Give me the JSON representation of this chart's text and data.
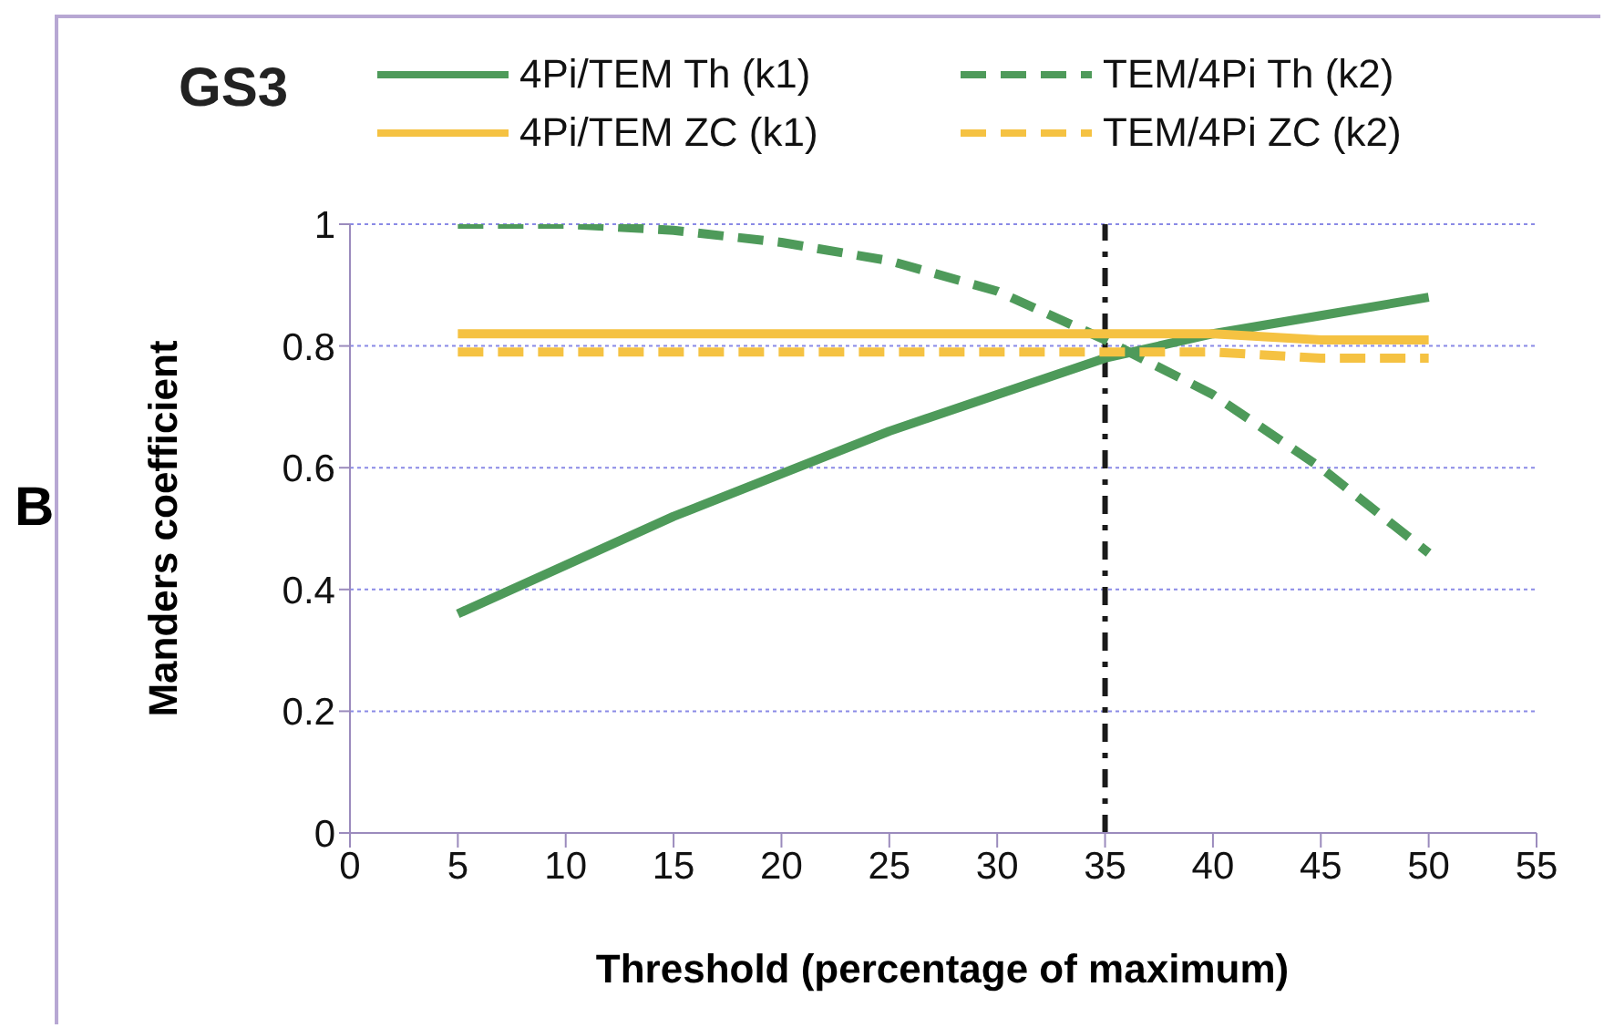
{
  "chart_data": {
    "type": "line",
    "title": "GS3",
    "xlabel": "Threshold (percentage of maximum)",
    "ylabel": "Manders coefficient",
    "annotations": [
      "B"
    ],
    "x": [
      5,
      10,
      15,
      20,
      25,
      30,
      35,
      40,
      45,
      50
    ],
    "series": [
      {
        "name": "4Pi/TEM Th (k1)",
        "color": "#4e9a5a",
        "line_style": "solid",
        "values": [
          0.36,
          0.44,
          0.52,
          0.59,
          0.66,
          0.72,
          0.78,
          0.82,
          0.85,
          0.88
        ]
      },
      {
        "name": "TEM/4Pi Th (k2)",
        "color": "#4e9a5a",
        "line_style": "dashed",
        "values": [
          1.0,
          1.0,
          0.99,
          0.97,
          0.94,
          0.89,
          0.81,
          0.72,
          0.6,
          0.46
        ]
      },
      {
        "name": "4Pi/TEM ZC (k1)",
        "color": "#f5c242",
        "line_style": "solid",
        "values": [
          0.82,
          0.82,
          0.82,
          0.82,
          0.82,
          0.82,
          0.82,
          0.82,
          0.81,
          0.81
        ]
      },
      {
        "name": "TEM/4Pi ZC (k2)",
        "color": "#f5c242",
        "line_style": "dashed",
        "values": [
          0.79,
          0.79,
          0.79,
          0.79,
          0.79,
          0.79,
          0.79,
          0.79,
          0.78,
          0.78
        ]
      }
    ],
    "xlim": [
      0,
      55
    ],
    "xticks": [
      0,
      5,
      10,
      15,
      20,
      25,
      30,
      35,
      40,
      45,
      50,
      55
    ],
    "ylim": [
      0,
      1
    ],
    "yticks": [
      0,
      0.2,
      0.4,
      0.6,
      0.8,
      1
    ],
    "ref_lines": [
      {
        "axis": "x",
        "value": 35,
        "color": "#1a1a1a",
        "line_style": "dashdot"
      }
    ],
    "grid": "y",
    "legend": "top",
    "marker": "none"
  }
}
